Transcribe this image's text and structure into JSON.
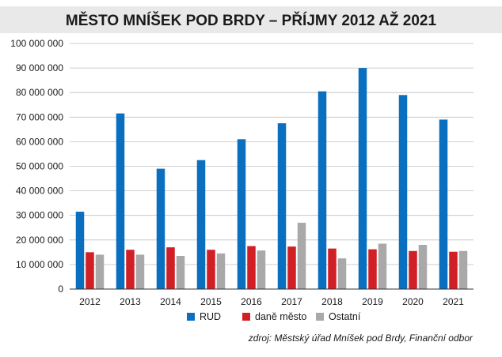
{
  "chart_data": {
    "type": "bar",
    "title": "MĚSTO MNÍŠEK POD BRDY – PŘÍJMY 2012 AŽ 2021",
    "categories": [
      "2012",
      "2013",
      "2014",
      "2015",
      "2016",
      "2017",
      "2018",
      "2019",
      "2020",
      "2021"
    ],
    "series": [
      {
        "name": "RUD",
        "color": "#0b6fc0",
        "values": [
          31500000,
          71500000,
          49000000,
          52500000,
          61000000,
          67500000,
          80500000,
          90000000,
          79000000,
          69000000
        ]
      },
      {
        "name": "daně město",
        "color": "#d11f26",
        "values": [
          15000000,
          16000000,
          17000000,
          16000000,
          17500000,
          17300000,
          16500000,
          16200000,
          15500000,
          15200000
        ]
      },
      {
        "name": "Ostatní",
        "color": "#a9a9a9",
        "values": [
          14000000,
          14000000,
          13500000,
          14500000,
          15700000,
          27000000,
          12500000,
          18500000,
          18000000,
          15500000
        ]
      }
    ],
    "yticks": [
      "0",
      "10 000 000",
      "20 000 000",
      "30 000 000",
      "40 000 000",
      "50 000 000",
      "60 000 000",
      "70 000 000",
      "80 000 000",
      "90 000 000",
      "100 000 000"
    ],
    "ylim": [
      0,
      100000000
    ],
    "grid": true,
    "legend": "bottom-center",
    "source": "zdroj: Městský úřad Mníšek pod Brdy, Finanční odbor"
  }
}
